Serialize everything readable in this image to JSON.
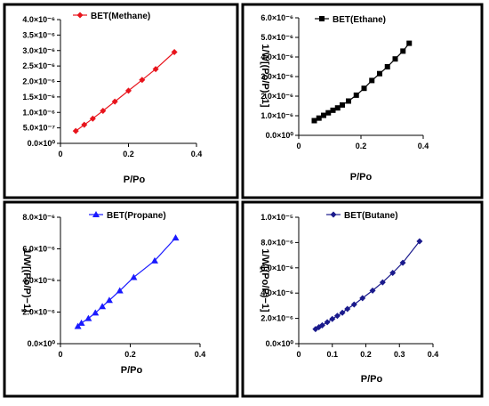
{
  "chart_data": [
    {
      "type": "line",
      "series": [
        {
          "name": "BET(Methane)",
          "marker": "diamond",
          "x": [
            0.045,
            0.07,
            0.095,
            0.125,
            0.16,
            0.2,
            0.24,
            0.28,
            0.335
          ],
          "y": [
            4e-07,
            6e-07,
            8e-07,
            1.05e-06,
            1.35e-06,
            1.7e-06,
            2.05e-06,
            2.4e-06,
            2.95e-06
          ]
        }
      ],
      "xlabel": "P/Po",
      "ylabel": "",
      "xlim": [
        0,
        0.4
      ],
      "ylim": [
        0,
        4e-06
      ],
      "x_ticks": [
        "0",
        "0.2",
        "0.4"
      ],
      "y_ticks": [
        "0.0×10⁰",
        "5.0×10⁻⁷",
        "1.0×10⁻⁶",
        "1.5×10⁻⁶",
        "2.0×10⁻⁶",
        "2.5×10⁻⁶",
        "3.0×10⁻⁶",
        "3.5×10⁻⁶",
        "4.0×10⁻⁶"
      ],
      "legend": "top-left",
      "grid": false,
      "color": "#e8141c"
    },
    {
      "type": "line",
      "series": [
        {
          "name": "BET(Ethane)",
          "marker": "square",
          "x": [
            0.05,
            0.065,
            0.08,
            0.095,
            0.11,
            0.125,
            0.14,
            0.16,
            0.185,
            0.21,
            0.235,
            0.26,
            0.285,
            0.31,
            0.335,
            0.355
          ],
          "y": [
            7.5e-07,
            8.8e-07,
            1.02e-06,
            1.15e-06,
            1.28e-06,
            1.4e-06,
            1.55e-06,
            1.75e-06,
            2.05e-06,
            2.4e-06,
            2.8e-06,
            3.15e-06,
            3.5e-06,
            3.9e-06,
            4.3e-06,
            4.7e-06
          ]
        }
      ],
      "xlabel": "P/Po",
      "ylabel": "1/W[(Po/P)−1]",
      "xlim": [
        0,
        0.4
      ],
      "ylim": [
        0,
        6e-06
      ],
      "x_ticks": [
        "0",
        "0.2",
        "0.4"
      ],
      "y_ticks": [
        "0.0×10⁰",
        "1.0×10⁻⁶",
        "2.0×10⁻⁶",
        "3.0×10⁻⁶",
        "4.0×10⁻⁶",
        "5.0×10⁻⁶",
        "6.0×10⁻⁶"
      ],
      "legend": "top-left",
      "grid": false,
      "color": "#000000"
    },
    {
      "type": "line",
      "series": [
        {
          "name": "BET(Propane)",
          "marker": "triangle",
          "x": [
            0.05,
            0.06,
            0.08,
            0.1,
            0.12,
            0.14,
            0.17,
            0.21,
            0.27,
            0.33
          ],
          "y": [
            1.1e-06,
            1.3e-06,
            1.6e-06,
            1.95e-06,
            2.35e-06,
            2.75e-06,
            3.35e-06,
            4.2e-06,
            5.25e-06,
            6.7e-06
          ]
        }
      ],
      "xlabel": "P/Po",
      "ylabel": "1/W[(Po/P)−1]",
      "xlim": [
        0,
        0.4
      ],
      "ylim": [
        0,
        8e-06
      ],
      "x_ticks": [
        "0",
        "0.2",
        "0.4"
      ],
      "y_ticks": [
        "0.0×10⁰",
        "2.0×10⁻⁶",
        "4.0×10⁻⁶",
        "6.0×10⁻⁶",
        "8.0×10⁻⁶"
      ],
      "legend": "top-left",
      "grid": false,
      "color": "#1a1aff"
    },
    {
      "type": "line",
      "series": [
        {
          "name": "BET(Butane)",
          "marker": "diamond",
          "x": [
            0.05,
            0.06,
            0.07,
            0.085,
            0.1,
            0.115,
            0.13,
            0.145,
            0.165,
            0.19,
            0.22,
            0.25,
            0.28,
            0.31,
            0.36
          ],
          "y": [
            1.15e-06,
            1.3e-06,
            1.45e-06,
            1.7e-06,
            1.95e-06,
            2.2e-06,
            2.45e-06,
            2.75e-06,
            3.1e-06,
            3.6e-06,
            4.2e-06,
            4.85e-06,
            5.6e-06,
            6.4e-06,
            8.1e-06
          ]
        }
      ],
      "xlabel": "P/Po",
      "ylabel": "1/W[(Po/P)−1]",
      "xlim": [
        0,
        0.4
      ],
      "ylim": [
        0,
        1e-05
      ],
      "x_ticks": [
        "0",
        "0.1",
        "0.2",
        "0.3",
        "0.4"
      ],
      "y_ticks": [
        "0.0×10⁰",
        "2.0×10⁻⁶",
        "4.0×10⁻⁶",
        "6.0×10⁻⁶",
        "8.0×10⁻⁶",
        "1.0×10⁻⁵"
      ],
      "legend": "top-left",
      "grid": false,
      "color": "#1a1a8c"
    }
  ]
}
